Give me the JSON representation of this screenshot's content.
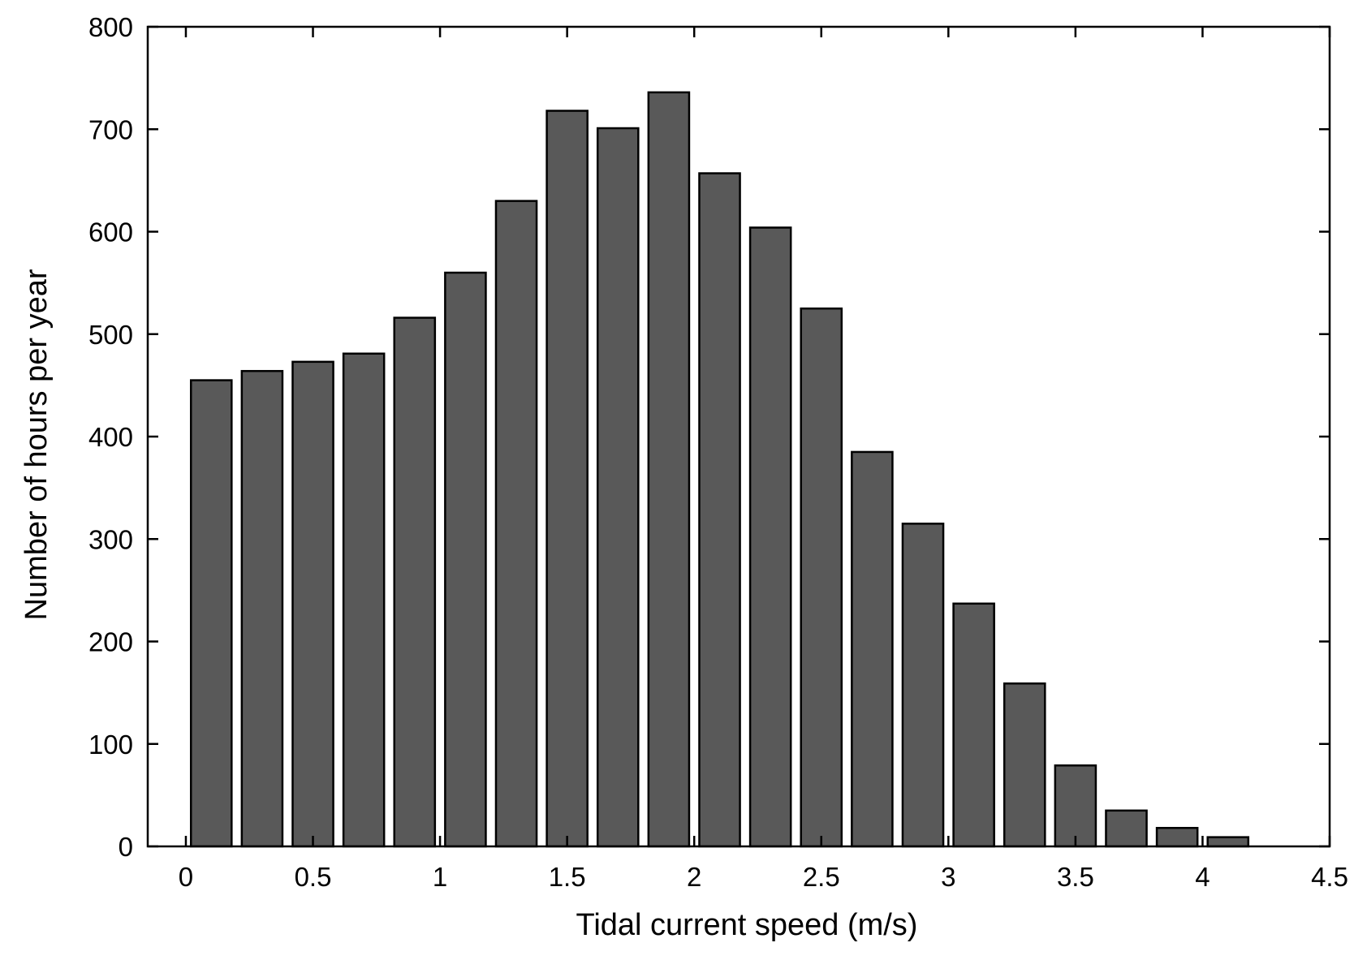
{
  "chart_data": {
    "type": "bar",
    "title": "",
    "xlabel": "Tidal current speed (m/s)",
    "ylabel": "Number of hours per year",
    "xlim": [
      -0.15,
      4.5
    ],
    "ylim": [
      0,
      800
    ],
    "xticks": [
      "0",
      "0.5",
      "1",
      "1.5",
      "2",
      "2.5",
      "3",
      "3.5",
      "4",
      "4.5"
    ],
    "yticks": [
      "0",
      "100",
      "200",
      "300",
      "400",
      "500",
      "600",
      "700",
      "800"
    ],
    "bar_color": "#595959",
    "x": [
      0.1,
      0.3,
      0.5,
      0.7,
      0.9,
      1.1,
      1.3,
      1.5,
      1.7,
      1.9,
      2.1,
      2.3,
      2.5,
      2.7,
      2.9,
      3.1,
      3.3,
      3.5,
      3.7,
      3.9,
      4.1
    ],
    "values": [
      455,
      464,
      473,
      481,
      516,
      560,
      630,
      718,
      701,
      736,
      657,
      604,
      525,
      385,
      315,
      237,
      159,
      79,
      35,
      18,
      9
    ],
    "grid": false,
    "legend": "none"
  }
}
